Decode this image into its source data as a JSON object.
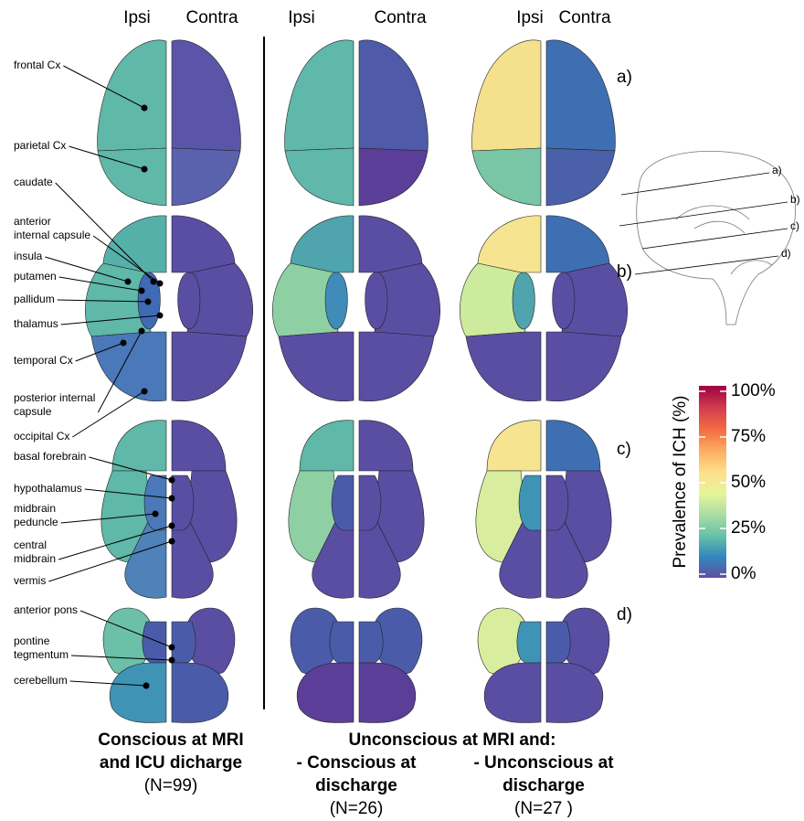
{
  "headers": [
    [
      "Ipsi",
      "Contra"
    ],
    [
      "Ipsi",
      "Contra"
    ],
    [
      "Ipsi",
      "Contra"
    ]
  ],
  "region_labels": [
    [
      "frontal Cx"
    ],
    [
      "parietal Cx"
    ],
    [
      "caudate"
    ],
    [
      "anterior",
      "internal capsule"
    ],
    [
      "insula"
    ],
    [
      "putamen"
    ],
    [
      "pallidum"
    ],
    [
      "thalamus"
    ],
    [
      "temporal Cx"
    ],
    [
      "posterior internal",
      "capsule"
    ],
    [
      "occipital Cx"
    ],
    [
      "basal forebrain"
    ],
    [
      "hypothalamus"
    ],
    [
      "midbrain",
      "peduncle"
    ],
    [
      "central",
      "midbrain"
    ],
    [
      "vermis"
    ],
    [
      "anterior pons"
    ],
    [
      "pontine",
      "tegmentum"
    ],
    [
      "cerebellum"
    ]
  ],
  "slice_labels": [
    "a)",
    "b)",
    "c)",
    "d)"
  ],
  "schematic_labels": [
    "a)",
    "b)",
    "c)",
    "d)"
  ],
  "colorbar": {
    "title": "Prevalence of ICH (%)",
    "lim": [
      0,
      100
    ],
    "ticks": [
      {
        "value": 100,
        "label": "100%"
      },
      {
        "value": 75,
        "label": "75%"
      },
      {
        "value": 50,
        "label": "50%"
      },
      {
        "value": 25,
        "label": "25%"
      },
      {
        "value": 0,
        "label": "0%"
      }
    ]
  },
  "panels": [
    {
      "a": {
        "ipsi": [
          "#5fb8a8",
          "#5fb8a8"
        ],
        "contra": [
          "#5a55a8",
          "#5b62ad"
        ]
      },
      "b": {
        "ipsi": [
          "#56b0aa",
          "#5fb8a8",
          "#4a78b8",
          "#3f6bb5"
        ],
        "contra": [
          "#5a4ea3",
          "#5a4ea3",
          "#5a4ea3",
          "#5a4ea3"
        ]
      },
      "c": {
        "ipsi": [
          "#5fb8a8",
          "#5fb8a8",
          "#4f82b8",
          "#4a78b8"
        ],
        "contra": [
          "#5a4ea3",
          "#5a4ea3",
          "#5a4ea3",
          "#5a4ea3"
        ]
      },
      "d": {
        "ipsi": [
          "#6cc0a7",
          "#4a5ca9",
          "#3f93b5"
        ],
        "contra": [
          "#5a4ea3",
          "#4a5ca9",
          "#4a5ca9"
        ]
      }
    },
    {
      "a": {
        "ipsi": [
          "#5fb8aa",
          "#5fb8aa"
        ],
        "contra": [
          "#4f5aa8",
          "#5a3e98"
        ]
      },
      "b": {
        "ipsi": [
          "#4fa4ad",
          "#8ed0a4",
          "#5a4ea3",
          "#3f8cb8"
        ],
        "contra": [
          "#5a4ea3",
          "#5a4ea3",
          "#5a4ea3",
          "#5a4ea3"
        ]
      },
      "c": {
        "ipsi": [
          "#5fb8a8",
          "#8ed0a4",
          "#5a4ea3",
          "#4a5ca9"
        ],
        "contra": [
          "#5a4ea3",
          "#5a4ea3",
          "#5a4ea3",
          "#5a4ea3"
        ]
      },
      "d": {
        "ipsi": [
          "#4a5ca9",
          "#4a5ca9",
          "#5a3e98"
        ],
        "contra": [
          "#4a5ca9",
          "#4a5ca9",
          "#5a3e98"
        ]
      }
    },
    {
      "a": {
        "ipsi": [
          "#f5e08d",
          "#78c6a6"
        ],
        "contra": [
          "#3f6fb3",
          "#4a60a8"
        ]
      },
      "b": {
        "ipsi": [
          "#f7e491",
          "#cdeb9c",
          "#5a4ea3",
          "#4fa4ad"
        ],
        "contra": [
          "#3f6fb3",
          "#5a4ea3",
          "#5a4ea3",
          "#5a4ea3"
        ]
      },
      "c": {
        "ipsi": [
          "#f7e491",
          "#d8ee9e",
          "#5a4ea3",
          "#3f93b5"
        ],
        "contra": [
          "#3f6fb3",
          "#5a4ea3",
          "#5a4ea3",
          "#5a4ea3"
        ]
      },
      "d": {
        "ipsi": [
          "#d8ee9e",
          "#3f93b5",
          "#5a4ea3"
        ],
        "contra": [
          "#5a4ea3",
          "#4a5ca9",
          "#5a4ea3"
        ]
      }
    }
  ],
  "groups": {
    "left": {
      "lines": [
        "Conscious at MRI",
        "and ICU dicharge"
      ],
      "n": "(N=99)"
    },
    "right_title": "Unconscious at MRI and:",
    "middle": {
      "lines": [
        "- Conscious at",
        "discharge"
      ],
      "n": "(N=26)"
    },
    "far": {
      "lines": [
        "- Unconscious at",
        "discharge"
      ],
      "n": "(N=27 )"
    }
  }
}
